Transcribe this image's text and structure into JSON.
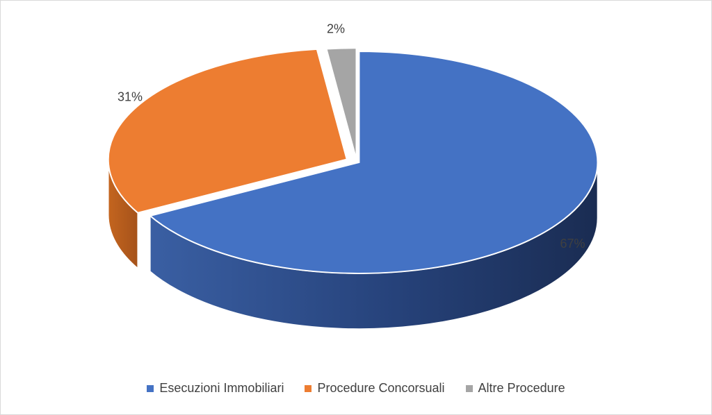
{
  "chart_data": {
    "type": "pie",
    "style": "3d",
    "categories": [
      "Esecuzioni Immobiliari",
      "Procedure Concorsuali",
      "Altre Procedure"
    ],
    "values": [
      67,
      31,
      2
    ],
    "data_labels": [
      "67%",
      "31%",
      "2%"
    ],
    "colors": [
      "#4472c4",
      "#ed7d31",
      "#a5a5a5"
    ],
    "side_colors": [
      "#2f4d85",
      "#b25a1f",
      "#7a7a7a"
    ],
    "legend_position": "bottom",
    "exploded": true
  }
}
